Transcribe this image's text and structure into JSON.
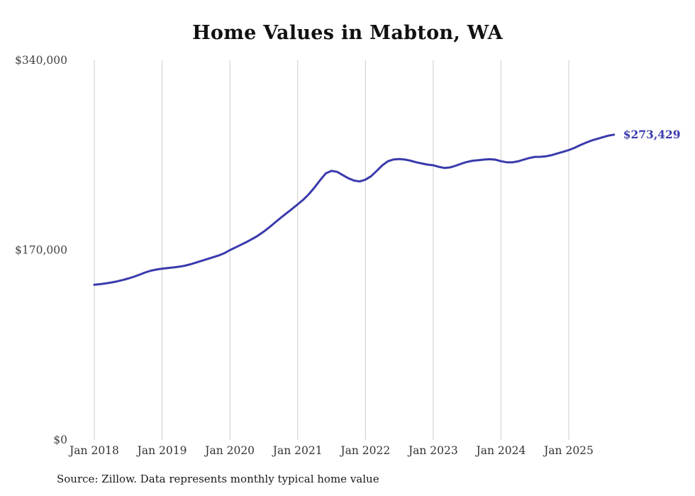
{
  "chart": {
    "title": "Home Values in Mabton, WA",
    "source_note": "Source: Zillow. Data represents monthly typical home value",
    "end_label": "$273,429",
    "line_color": "#3a3aad",
    "grid_color": "#cccccc",
    "tick_text_color": "#333333",
    "ytick_text_color": "#444444"
  },
  "chart_data": {
    "type": "line",
    "title": "Home Values in Mabton, WA",
    "ylabel": "",
    "xlabel": "",
    "ylim": [
      0,
      340000
    ],
    "grid": "vertical-only",
    "legend": "none",
    "source": "Source: Zillow. Data represents monthly typical home value",
    "y_ticks": [
      {
        "label": "$340,000",
        "value": 340000
      },
      {
        "label": "$170,000",
        "value": 170000
      },
      {
        "label": "$0",
        "value": 0
      }
    ],
    "x_tick_labels": [
      "Jan 2018",
      "Jan 2019",
      "Jan 2020",
      "Jan 2021",
      "Jan 2022",
      "Jan 2023",
      "Jan 2024",
      "Jan 2025"
    ],
    "x_tick_month_index": [
      0,
      12,
      24,
      36,
      48,
      60,
      72,
      84
    ],
    "annotations": [
      {
        "text": "$273,429",
        "x": "2025-09",
        "y": 273429
      }
    ],
    "x": [
      "2018-01",
      "2018-02",
      "2018-03",
      "2018-04",
      "2018-05",
      "2018-06",
      "2018-07",
      "2018-08",
      "2018-09",
      "2018-10",
      "2018-11",
      "2018-12",
      "2019-01",
      "2019-02",
      "2019-03",
      "2019-04",
      "2019-05",
      "2019-06",
      "2019-07",
      "2019-08",
      "2019-09",
      "2019-10",
      "2019-11",
      "2019-12",
      "2020-01",
      "2020-02",
      "2020-03",
      "2020-04",
      "2020-05",
      "2020-06",
      "2020-07",
      "2020-08",
      "2020-09",
      "2020-10",
      "2020-11",
      "2020-12",
      "2021-01",
      "2021-02",
      "2021-03",
      "2021-04",
      "2021-05",
      "2021-06",
      "2021-07",
      "2021-08",
      "2021-09",
      "2021-10",
      "2021-11",
      "2021-12",
      "2022-01",
      "2022-02",
      "2022-03",
      "2022-04",
      "2022-05",
      "2022-06",
      "2022-07",
      "2022-08",
      "2022-09",
      "2022-10",
      "2022-11",
      "2022-12",
      "2023-01",
      "2023-02",
      "2023-03",
      "2023-04",
      "2023-05",
      "2023-06",
      "2023-07",
      "2023-08",
      "2023-09",
      "2023-10",
      "2023-11",
      "2023-12",
      "2024-01",
      "2024-02",
      "2024-03",
      "2024-04",
      "2024-05",
      "2024-06",
      "2024-07",
      "2024-08",
      "2024-09",
      "2024-10",
      "2024-11",
      "2024-12",
      "2025-01",
      "2025-02",
      "2025-03",
      "2025-04",
      "2025-05",
      "2025-06",
      "2025-07",
      "2025-08",
      "2025-09"
    ],
    "values": [
      139000,
      139500,
      140200,
      141000,
      142000,
      143200,
      144600,
      146200,
      148000,
      150000,
      151600,
      152600,
      153400,
      154000,
      154500,
      155100,
      156000,
      157300,
      158800,
      160400,
      162000,
      163600,
      165200,
      167200,
      170000,
      172400,
      174900,
      177400,
      180100,
      183100,
      186600,
      190500,
      194800,
      198900,
      202900,
      206900,
      211000,
      215200,
      220200,
      226200,
      232800,
      238800,
      241000,
      240100,
      237200,
      234300,
      232300,
      231500,
      233100,
      236200,
      241000,
      246000,
      249600,
      251200,
      251600,
      251100,
      250100,
      248700,
      247600,
      246600,
      246000,
      244600,
      243600,
      244100,
      245600,
      247500,
      249000,
      250100,
      250600,
      251100,
      251400,
      251000,
      249600,
      248700,
      248600,
      249500,
      251000,
      252500,
      253500,
      253600,
      254100,
      255100,
      256600,
      258100,
      259600,
      261600,
      264000,
      266100,
      268100,
      269600,
      271100,
      272500,
      273429
    ]
  }
}
